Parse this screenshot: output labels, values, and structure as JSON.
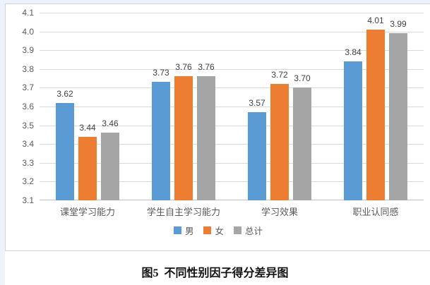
{
  "chart_data": {
    "type": "bar",
    "categories": [
      "课堂学习能力",
      "学生自主学习能力",
      "学习效果",
      "职业认同感"
    ],
    "series": [
      {
        "name": "男",
        "color": "#5B9BD5",
        "values": [
          3.62,
          3.73,
          3.57,
          3.84
        ]
      },
      {
        "name": "女",
        "color": "#ED7D31",
        "values": [
          3.44,
          3.76,
          3.72,
          4.01
        ]
      },
      {
        "name": "总计",
        "color": "#A5A5A5",
        "values": [
          3.46,
          3.76,
          3.7,
          3.99
        ]
      }
    ],
    "ylim": [
      3.1,
      4.1
    ],
    "ytick_step": 0.1,
    "yticks": [
      "4.1",
      "4.0",
      "3.9",
      "3.8",
      "3.7",
      "3.6",
      "3.5",
      "3.4",
      "3.3",
      "3.2",
      "3.1"
    ],
    "grid": true,
    "value_labels": true,
    "legend_position": "bottom",
    "title": "",
    "xlabel": "",
    "ylabel": ""
  },
  "caption": {
    "text": "图5  不同性别因子得分差异图"
  },
  "colors": {
    "series_male": "#5B9BD5",
    "series_female": "#ED7D31",
    "series_total": "#A5A5A5",
    "gridline": "#D9D9D9",
    "axis_text": "#595959",
    "value_text": "#404040",
    "page_margin": "#EDF2FB",
    "frame_border": "#D4D4D4"
  }
}
